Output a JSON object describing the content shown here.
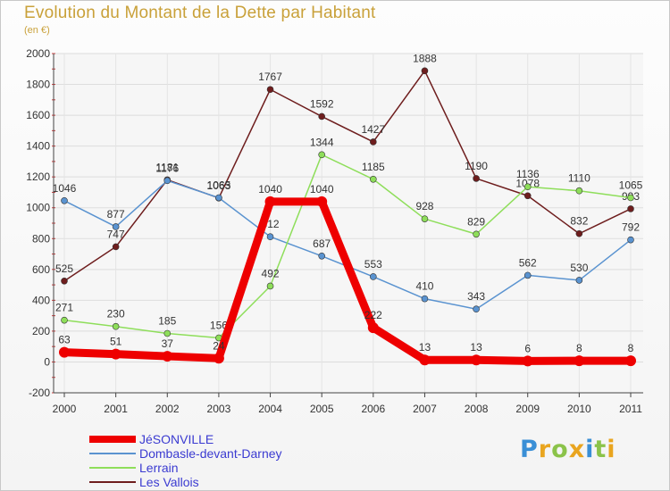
{
  "chart_data": {
    "type": "line",
    "title": "Evolution du Montant de la Dette par Habitant",
    "subtitle": "(en €)",
    "xlabel": "",
    "ylabel": "",
    "x": [
      "2000",
      "2001",
      "2002",
      "2003",
      "2004",
      "2005",
      "2006",
      "2007",
      "2008",
      "2009",
      "2010",
      "2011"
    ],
    "ylim": [
      -200,
      2000
    ],
    "yticks": [
      -200,
      0,
      200,
      400,
      600,
      800,
      1000,
      1200,
      1400,
      1600,
      1800,
      2000
    ],
    "grid": true,
    "legend_position": "bottom-left",
    "series": [
      {
        "name": "Les Vallois",
        "color": "#6e1d1d",
        "values": [
          525,
          747,
          1181,
          1063,
          1767,
          1592,
          1427,
          1888,
          1190,
          1078,
          832,
          993
        ]
      },
      {
        "name": "Dombasle-devant-Darney",
        "color": "#5a93d0",
        "values": [
          1046,
          877,
          1176,
          1065,
          812,
          687,
          553,
          410,
          343,
          562,
          530,
          792
        ]
      },
      {
        "name": "Lerrain",
        "color": "#8ede5a",
        "values": [
          271,
          230,
          185,
          156,
          492,
          1344,
          1185,
          928,
          829,
          1136,
          1110,
          1065
        ]
      },
      {
        "name": "JéSONVILLE",
        "color": "#ee0000",
        "values": [
          63,
          51,
          37,
          24,
          1040,
          1040,
          222,
          13,
          13,
          6,
          8,
          8
        ]
      }
    ]
  },
  "legend": {
    "items": [
      {
        "label": "JéSONVILLE",
        "color": "#ee0000"
      },
      {
        "label": "Dombasle-devant-Darney",
        "color": "#5a93d0"
      },
      {
        "label": "Lerrain",
        "color": "#8ede5a"
      },
      {
        "label": "Les Vallois",
        "color": "#6e1d1d"
      }
    ]
  },
  "logo": {
    "text": "Proxiti",
    "letters": [
      {
        "ch": "P",
        "color": "#3a8fd6"
      },
      {
        "ch": "r",
        "color": "#e9a51f"
      },
      {
        "ch": "o",
        "color": "#8bc34a"
      },
      {
        "ch": "x",
        "color": "#e9a51f"
      },
      {
        "ch": "i",
        "color": "#3a8fd6"
      },
      {
        "ch": "t",
        "color": "#8bc34a"
      },
      {
        "ch": "i",
        "color": "#e9a51f"
      }
    ]
  }
}
